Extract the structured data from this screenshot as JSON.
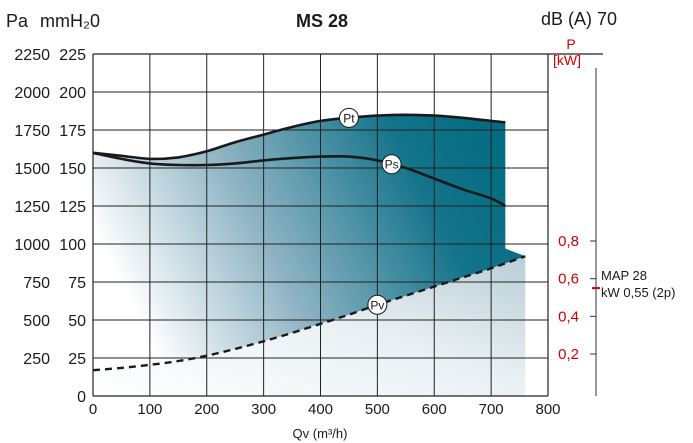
{
  "chart_data": {
    "type": "line",
    "title": "MS 28",
    "left_units_pa": "Pa",
    "left_units_mmh2o": "mmH₂0",
    "sound_label": "dB (A) 70",
    "xlabel": "Qv (m³/h)",
    "xlim": [
      0,
      800
    ],
    "x_ticks": [
      0,
      100,
      200,
      300,
      400,
      500,
      600,
      700,
      800
    ],
    "ylim_mmh2o": [
      0,
      225
    ],
    "y_ticks_mmh2o": [
      0,
      25,
      50,
      75,
      100,
      125,
      150,
      175,
      200,
      225
    ],
    "y_ticks_pa": [
      "",
      "250",
      "500",
      "750",
      "1000",
      "1250",
      "1500",
      "1750",
      "2000",
      "2250"
    ],
    "power_axis": {
      "label_top": "P",
      "label_unit": "[kW]",
      "ticks": [
        0.2,
        0.4,
        0.6,
        0.8
      ],
      "tick_labels": [
        "0,2",
        "0,4",
        "0,6",
        "0,8"
      ],
      "range_kw": [
        0,
        0.8
      ]
    },
    "motor_label": {
      "line1": "MAP 28",
      "line2": "kW 0,55 (2p)",
      "power_kw": 0.55
    },
    "grid": true,
    "series": [
      {
        "name": "Pt",
        "axis": "mmH2O",
        "x": [
          0,
          50,
          100,
          150,
          200,
          250,
          300,
          350,
          400,
          450,
          500,
          550,
          600,
          650,
          700,
          725
        ],
        "values": [
          160,
          158,
          156,
          157,
          161,
          167,
          172,
          177,
          181,
          183,
          184.5,
          185,
          184.5,
          183,
          181,
          180
        ]
      },
      {
        "name": "Ps",
        "axis": "mmH2O",
        "x": [
          0,
          50,
          100,
          150,
          200,
          250,
          300,
          350,
          400,
          450,
          500,
          550,
          600,
          650,
          700,
          725
        ],
        "values": [
          160,
          156,
          153,
          152,
          152,
          153,
          155,
          156.5,
          157.5,
          157.5,
          155,
          150,
          143,
          136,
          130,
          125
        ]
      },
      {
        "name": "Pv",
        "axis": "mmH2O",
        "style": "dashed",
        "x": [
          0,
          50,
          100,
          150,
          200,
          250,
          300,
          350,
          400,
          450,
          500,
          550,
          600,
          650,
          700,
          760
        ],
        "values": [
          17,
          18.5,
          20.5,
          23,
          26.5,
          31,
          36,
          41.5,
          47.5,
          53.5,
          60,
          66,
          72,
          78,
          84,
          92
        ]
      }
    ],
    "power_curve": {
      "name": "P",
      "axis": "kW",
      "x": [
        0,
        100,
        200,
        300,
        400,
        500,
        600,
        700,
        760
      ],
      "values_kw": [
        0.17,
        0.21,
        0.28,
        0.37,
        0.46,
        0.55,
        0.64,
        0.74,
        0.8
      ]
    },
    "curve_labels": [
      "Pt",
      "Ps",
      "Pv"
    ]
  }
}
